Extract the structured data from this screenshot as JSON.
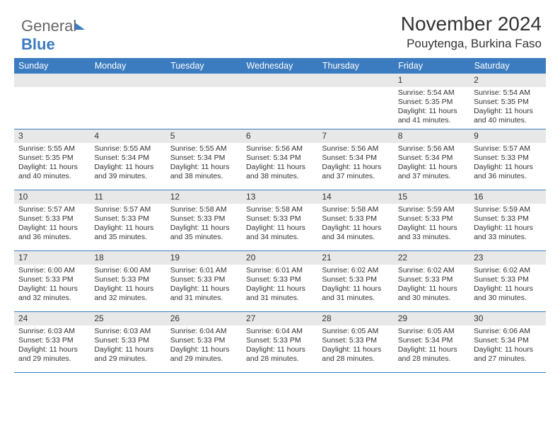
{
  "logo": {
    "part1": "General",
    "part2": "Blue"
  },
  "header": {
    "title": "November 2024",
    "subtitle": "Pouytenga, Burkina Faso"
  },
  "colors": {
    "header_bg": "#3b7bbf",
    "header_text": "#ffffff",
    "daynum_bg": "#e8e8e8",
    "border": "#3b7bbf",
    "text": "#333333",
    "background": "#ffffff"
  },
  "typography": {
    "title_fontsize": 28,
    "subtitle_fontsize": 17,
    "th_fontsize": 12.5,
    "daynum_fontsize": 12,
    "body_fontsize": 10.5
  },
  "days_of_week": [
    "Sunday",
    "Monday",
    "Tuesday",
    "Wednesday",
    "Thursday",
    "Friday",
    "Saturday"
  ],
  "weeks": [
    [
      null,
      null,
      null,
      null,
      null,
      {
        "n": "1",
        "sunrise": "Sunrise: 5:54 AM",
        "sunset": "Sunset: 5:35 PM",
        "daylight": "Daylight: 11 hours and 41 minutes."
      },
      {
        "n": "2",
        "sunrise": "Sunrise: 5:54 AM",
        "sunset": "Sunset: 5:35 PM",
        "daylight": "Daylight: 11 hours and 40 minutes."
      }
    ],
    [
      {
        "n": "3",
        "sunrise": "Sunrise: 5:55 AM",
        "sunset": "Sunset: 5:35 PM",
        "daylight": "Daylight: 11 hours and 40 minutes."
      },
      {
        "n": "4",
        "sunrise": "Sunrise: 5:55 AM",
        "sunset": "Sunset: 5:34 PM",
        "daylight": "Daylight: 11 hours and 39 minutes."
      },
      {
        "n": "5",
        "sunrise": "Sunrise: 5:55 AM",
        "sunset": "Sunset: 5:34 PM",
        "daylight": "Daylight: 11 hours and 38 minutes."
      },
      {
        "n": "6",
        "sunrise": "Sunrise: 5:56 AM",
        "sunset": "Sunset: 5:34 PM",
        "daylight": "Daylight: 11 hours and 38 minutes."
      },
      {
        "n": "7",
        "sunrise": "Sunrise: 5:56 AM",
        "sunset": "Sunset: 5:34 PM",
        "daylight": "Daylight: 11 hours and 37 minutes."
      },
      {
        "n": "8",
        "sunrise": "Sunrise: 5:56 AM",
        "sunset": "Sunset: 5:34 PM",
        "daylight": "Daylight: 11 hours and 37 minutes."
      },
      {
        "n": "9",
        "sunrise": "Sunrise: 5:57 AM",
        "sunset": "Sunset: 5:33 PM",
        "daylight": "Daylight: 11 hours and 36 minutes."
      }
    ],
    [
      {
        "n": "10",
        "sunrise": "Sunrise: 5:57 AM",
        "sunset": "Sunset: 5:33 PM",
        "daylight": "Daylight: 11 hours and 36 minutes."
      },
      {
        "n": "11",
        "sunrise": "Sunrise: 5:57 AM",
        "sunset": "Sunset: 5:33 PM",
        "daylight": "Daylight: 11 hours and 35 minutes."
      },
      {
        "n": "12",
        "sunrise": "Sunrise: 5:58 AM",
        "sunset": "Sunset: 5:33 PM",
        "daylight": "Daylight: 11 hours and 35 minutes."
      },
      {
        "n": "13",
        "sunrise": "Sunrise: 5:58 AM",
        "sunset": "Sunset: 5:33 PM",
        "daylight": "Daylight: 11 hours and 34 minutes."
      },
      {
        "n": "14",
        "sunrise": "Sunrise: 5:58 AM",
        "sunset": "Sunset: 5:33 PM",
        "daylight": "Daylight: 11 hours and 34 minutes."
      },
      {
        "n": "15",
        "sunrise": "Sunrise: 5:59 AM",
        "sunset": "Sunset: 5:33 PM",
        "daylight": "Daylight: 11 hours and 33 minutes."
      },
      {
        "n": "16",
        "sunrise": "Sunrise: 5:59 AM",
        "sunset": "Sunset: 5:33 PM",
        "daylight": "Daylight: 11 hours and 33 minutes."
      }
    ],
    [
      {
        "n": "17",
        "sunrise": "Sunrise: 6:00 AM",
        "sunset": "Sunset: 5:33 PM",
        "daylight": "Daylight: 11 hours and 32 minutes."
      },
      {
        "n": "18",
        "sunrise": "Sunrise: 6:00 AM",
        "sunset": "Sunset: 5:33 PM",
        "daylight": "Daylight: 11 hours and 32 minutes."
      },
      {
        "n": "19",
        "sunrise": "Sunrise: 6:01 AM",
        "sunset": "Sunset: 5:33 PM",
        "daylight": "Daylight: 11 hours and 31 minutes."
      },
      {
        "n": "20",
        "sunrise": "Sunrise: 6:01 AM",
        "sunset": "Sunset: 5:33 PM",
        "daylight": "Daylight: 11 hours and 31 minutes."
      },
      {
        "n": "21",
        "sunrise": "Sunrise: 6:02 AM",
        "sunset": "Sunset: 5:33 PM",
        "daylight": "Daylight: 11 hours and 31 minutes."
      },
      {
        "n": "22",
        "sunrise": "Sunrise: 6:02 AM",
        "sunset": "Sunset: 5:33 PM",
        "daylight": "Daylight: 11 hours and 30 minutes."
      },
      {
        "n": "23",
        "sunrise": "Sunrise: 6:02 AM",
        "sunset": "Sunset: 5:33 PM",
        "daylight": "Daylight: 11 hours and 30 minutes."
      }
    ],
    [
      {
        "n": "24",
        "sunrise": "Sunrise: 6:03 AM",
        "sunset": "Sunset: 5:33 PM",
        "daylight": "Daylight: 11 hours and 29 minutes."
      },
      {
        "n": "25",
        "sunrise": "Sunrise: 6:03 AM",
        "sunset": "Sunset: 5:33 PM",
        "daylight": "Daylight: 11 hours and 29 minutes."
      },
      {
        "n": "26",
        "sunrise": "Sunrise: 6:04 AM",
        "sunset": "Sunset: 5:33 PM",
        "daylight": "Daylight: 11 hours and 29 minutes."
      },
      {
        "n": "27",
        "sunrise": "Sunrise: 6:04 AM",
        "sunset": "Sunset: 5:33 PM",
        "daylight": "Daylight: 11 hours and 28 minutes."
      },
      {
        "n": "28",
        "sunrise": "Sunrise: 6:05 AM",
        "sunset": "Sunset: 5:33 PM",
        "daylight": "Daylight: 11 hours and 28 minutes."
      },
      {
        "n": "29",
        "sunrise": "Sunrise: 6:05 AM",
        "sunset": "Sunset: 5:34 PM",
        "daylight": "Daylight: 11 hours and 28 minutes."
      },
      {
        "n": "30",
        "sunrise": "Sunrise: 6:06 AM",
        "sunset": "Sunset: 5:34 PM",
        "daylight": "Daylight: 11 hours and 27 minutes."
      }
    ]
  ]
}
